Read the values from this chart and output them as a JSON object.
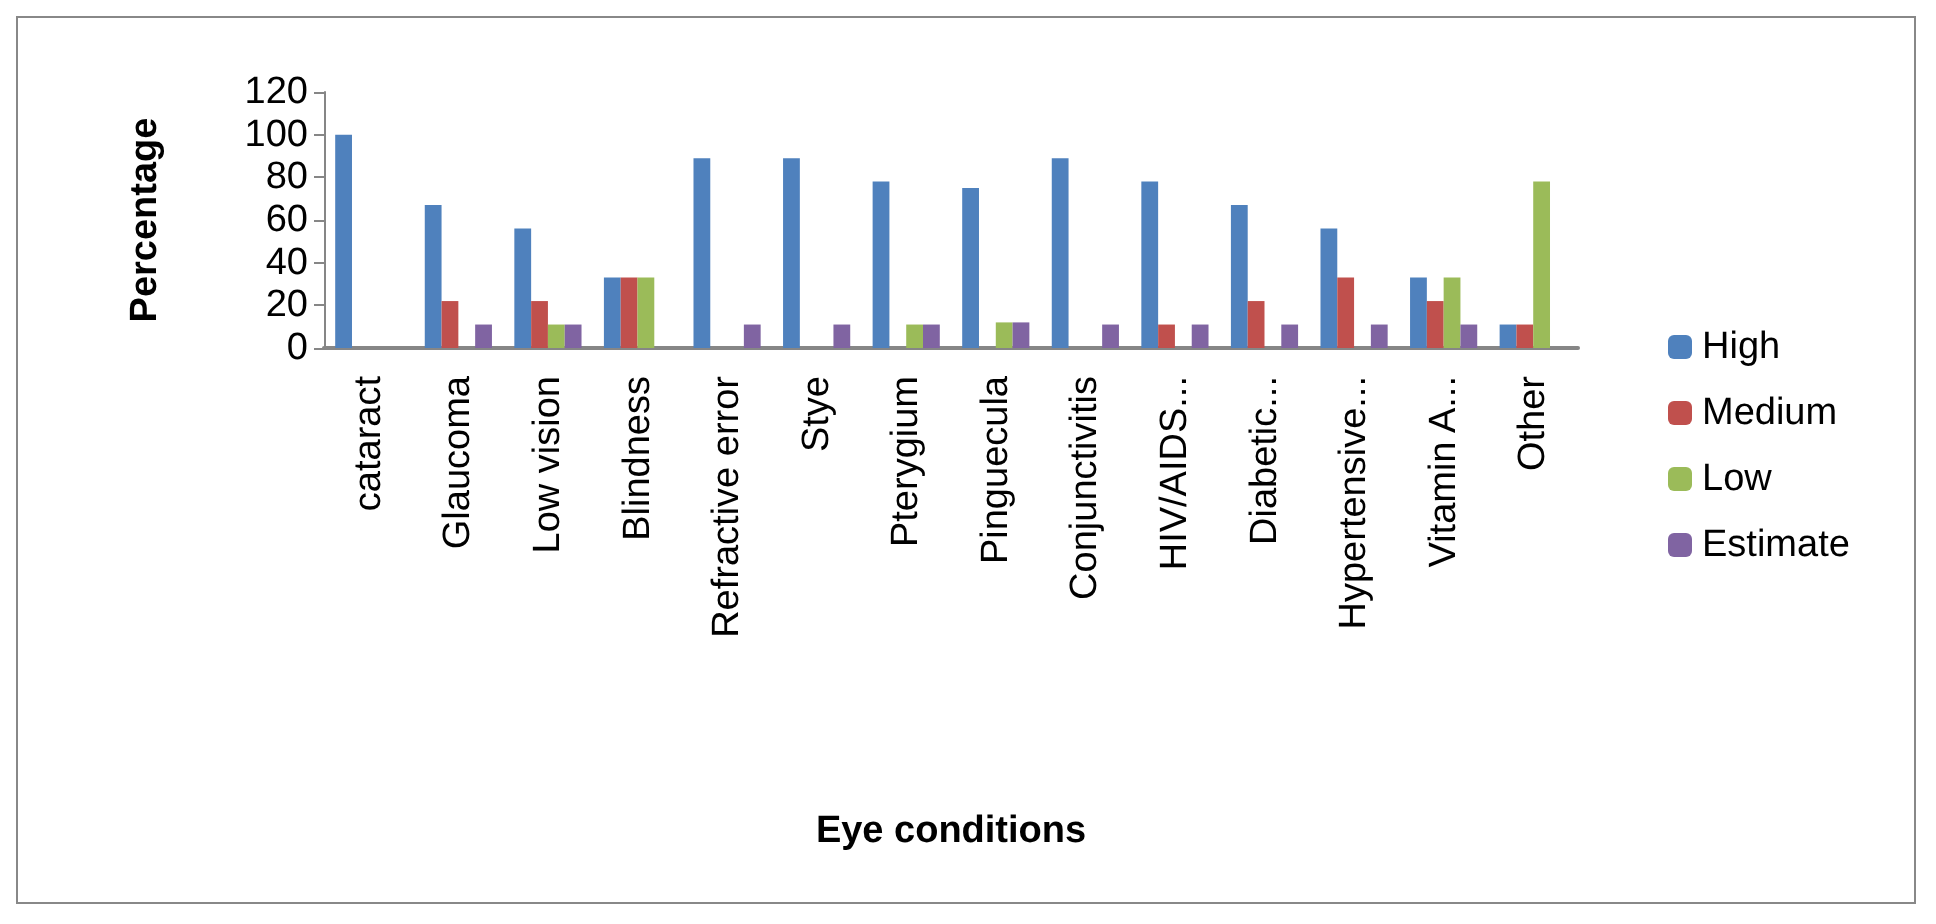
{
  "chart_data": {
    "type": "bar",
    "xlabel": "Eye conditions",
    "ylabel": "Percentage",
    "categories": [
      "cataract",
      "Glaucoma",
      "Low vision",
      "Blindness",
      "Refractive error",
      "Stye",
      "Pterygium",
      "Pinguecula",
      "Conjunctivitis",
      "HIV/AIDS...",
      "Diabetic...",
      "Hypertensive...",
      "Vitamin A...",
      "Other"
    ],
    "series": [
      {
        "name": "High",
        "color": "#4f81bd",
        "values": [
          100,
          67,
          56,
          33,
          89,
          89,
          78,
          75,
          89,
          78,
          67,
          56,
          33,
          11
        ]
      },
      {
        "name": "Medium",
        "color": "#c0504d",
        "values": [
          0,
          22,
          22,
          33,
          0,
          0,
          0,
          0,
          0,
          11,
          22,
          33,
          22,
          11
        ]
      },
      {
        "name": "Low",
        "color": "#9bbb59",
        "values": [
          0,
          0,
          11,
          33,
          0,
          0,
          11,
          12,
          0,
          0,
          0,
          0,
          33,
          78
        ]
      },
      {
        "name": "Estimate",
        "color": "#8064a2",
        "values": [
          0,
          11,
          11,
          0,
          11,
          11,
          11,
          12,
          11,
          11,
          11,
          11,
          11,
          0
        ]
      }
    ],
    "ylim": [
      0,
      120
    ],
    "yticks": [
      0,
      20,
      40,
      60,
      80,
      100,
      120
    ],
    "legend": "right"
  }
}
